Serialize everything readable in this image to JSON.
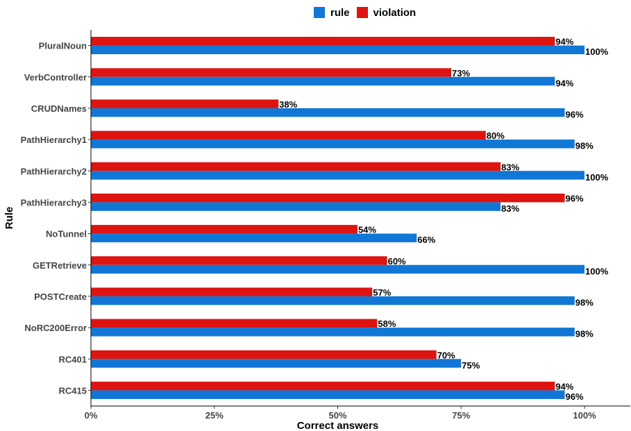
{
  "chart_data": {
    "type": "bar",
    "orientation": "horizontal",
    "title": "",
    "xlabel": "Correct answers",
    "ylabel": "Rule",
    "xlim": [
      0,
      1
    ],
    "xticks": [
      "0%",
      "25%",
      "50%",
      "75%",
      "100%"
    ],
    "grid": false,
    "legend_position": "top",
    "categories": [
      "PluralNoun",
      "VerbController",
      "CRUDNames",
      "PathHierarchy1",
      "PathHierarchy2",
      "PathHierarchy3",
      "NoTunnel",
      "GETRetrieve",
      "POSTCreate",
      "NoRC200Error",
      "RC401",
      "RC415"
    ],
    "series": [
      {
        "name": "rule",
        "color": "#1177d6",
        "values": [
          1.0,
          0.94,
          0.96,
          0.98,
          1.0,
          0.83,
          0.66,
          1.0,
          0.98,
          0.98,
          0.75,
          0.96
        ],
        "labels": [
          "100%",
          "94%",
          "96%",
          "98%",
          "100%",
          "83%",
          "66%",
          "100%",
          "98%",
          "98%",
          "75%",
          "96%"
        ]
      },
      {
        "name": "violation",
        "color": "#dd1410",
        "values": [
          0.94,
          0.73,
          0.38,
          0.8,
          0.83,
          0.96,
          0.54,
          0.6,
          0.57,
          0.58,
          0.7,
          0.94
        ],
        "labels": [
          "94%",
          "73%",
          "38%",
          "80%",
          "83%",
          "96%",
          "54%",
          "60%",
          "57%",
          "58%",
          "70%",
          "94%"
        ]
      }
    ]
  }
}
